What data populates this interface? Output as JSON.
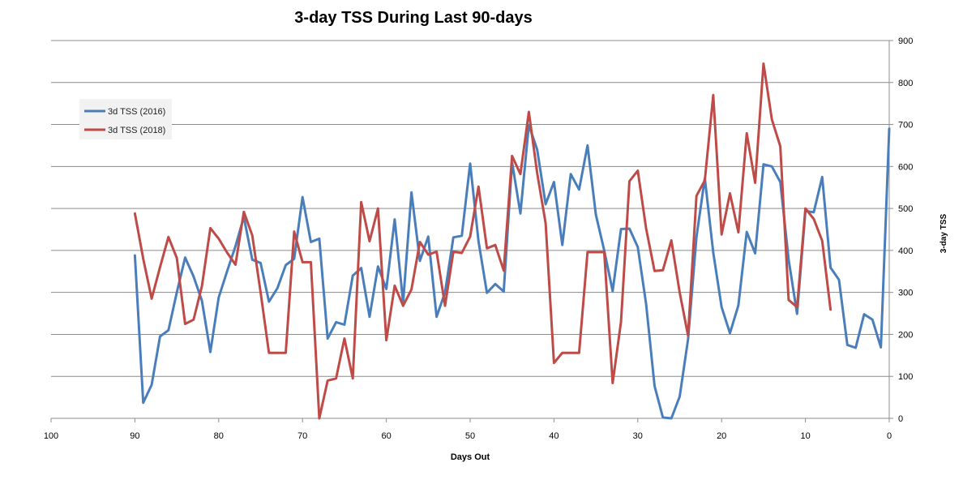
{
  "chart_data": {
    "type": "line",
    "title": "3-day TSS During Last 90-days",
    "xlabel": "Days Out",
    "ylabel": "3-day TSS",
    "xlim": [
      100,
      0
    ],
    "ylim": [
      0,
      900
    ],
    "x_reversed": true,
    "x_ticks": [
      "100",
      "90",
      "80",
      "70",
      "60",
      "50",
      "40",
      "30",
      "20",
      "10",
      "0"
    ],
    "y_ticks": [
      "0",
      "100",
      "200",
      "300",
      "400",
      "500",
      "600",
      "700",
      "800",
      "900"
    ],
    "grid": "horizontal",
    "legend_position": "top-left",
    "y_axis_side": "right",
    "series": [
      {
        "name": "3d TSS (2016)",
        "color": "#4a7ebb",
        "x": [
          90,
          89,
          88,
          87,
          86,
          85,
          84,
          83,
          82,
          81,
          80,
          79,
          78,
          77,
          76,
          75,
          74,
          73,
          72,
          71,
          70,
          69,
          68,
          67,
          66,
          65,
          64,
          63,
          62,
          61,
          60,
          59,
          58,
          57,
          56,
          55,
          54,
          53,
          52,
          51,
          50,
          49,
          48,
          47,
          46,
          45,
          44,
          43,
          42,
          41,
          40,
          39,
          38,
          37,
          36,
          35,
          34,
          33,
          32,
          31,
          30,
          29,
          28,
          27,
          26,
          25,
          24,
          23,
          22,
          21,
          20,
          19,
          18,
          17,
          16,
          15,
          14,
          13,
          12,
          11,
          10,
          9,
          8,
          7,
          6,
          5,
          4,
          3,
          2,
          1,
          0
        ],
        "values": [
          388,
          37,
          80,
          195,
          210,
          300,
          383,
          338,
          280,
          158,
          288,
          350,
          410,
          480,
          378,
          370,
          278,
          310,
          365,
          380,
          527,
          420,
          428,
          190,
          229,
          223,
          340,
          358,
          242,
          362,
          308,
          474,
          276,
          538,
          375,
          433,
          242,
          300,
          431,
          435,
          607,
          422,
          299,
          320,
          302,
          610,
          488,
          699,
          640,
          510,
          563,
          413,
          582,
          545,
          650,
          485,
          400,
          303,
          451,
          452,
          408,
          272,
          77,
          2,
          0,
          52,
          188,
          432,
          572,
          395,
          265,
          203,
          269,
          444,
          393,
          605,
          600,
          563,
          378,
          249,
          494,
          491,
          575,
          359,
          330,
          175,
          168,
          248,
          235,
          169,
          690
        ]
      },
      {
        "name": "3d TSS (2018)",
        "color": "#be4b48",
        "x": [
          90,
          89,
          88,
          87,
          86,
          85,
          84,
          83,
          82,
          81,
          80,
          79,
          78,
          77,
          76,
          75,
          74,
          73,
          72,
          71,
          70,
          69,
          68,
          67,
          66,
          65,
          64,
          63,
          62,
          61,
          60,
          59,
          58,
          57,
          56,
          55,
          54,
          53,
          52,
          51,
          50,
          49,
          48,
          47,
          46,
          45,
          44,
          43,
          42,
          41,
          40,
          39,
          38,
          37,
          36,
          35,
          34,
          33,
          32,
          31,
          30,
          29,
          28,
          27,
          26,
          25,
          24,
          23,
          22,
          21,
          20,
          19,
          18,
          17,
          16,
          15,
          14,
          13,
          12,
          11,
          10,
          9,
          8,
          7
        ],
        "values": [
          488,
          380,
          285,
          360,
          432,
          382,
          225,
          235,
          315,
          453,
          428,
          395,
          366,
          492,
          436,
          300,
          156,
          156,
          156,
          445,
          372,
          372,
          0,
          90,
          95,
          190,
          95,
          515,
          422,
          500,
          186,
          316,
          268,
          307,
          420,
          390,
          397,
          268,
          397,
          394,
          433,
          552,
          405,
          413,
          352,
          625,
          582,
          730,
          584,
          465,
          132,
          156,
          156,
          156,
          396,
          396,
          396,
          84,
          230,
          565,
          590,
          452,
          351,
          353,
          424,
          300,
          197,
          530,
          567,
          770,
          438,
          536,
          443,
          679,
          561,
          845,
          712,
          648,
          282,
          265,
          500,
          475,
          423,
          259
        ]
      }
    ]
  }
}
